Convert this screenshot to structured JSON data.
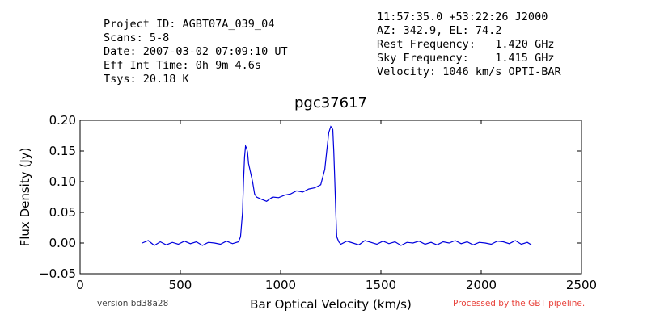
{
  "header": {
    "left": [
      "Project ID: AGBT07A_039_04",
      "Scans: 5-8",
      "Date: 2007-03-02 07:09:10 UT",
      "Eff Int Time: 0h 9m 4.6s",
      "Tsys: 20.18 K"
    ],
    "right": [
      "11:57:35.0 +53:22:26 J2000",
      "AZ: 342.9, EL: 74.2",
      "Rest Frequency:   1.420 GHz",
      "Sky Frequency:    1.415 GHz",
      "Velocity: 1046 km/s OPTI-BAR"
    ]
  },
  "footer": {
    "version": "version bd38a28",
    "processed": "Processed by the GBT pipeline."
  },
  "colors": {
    "line": "#0000dd",
    "processed_text": "#e8413a"
  },
  "chart_data": {
    "type": "line",
    "title": "pgc37617",
    "xlabel": "Bar Optical Velocity (km/s)",
    "ylabel": "Flux Density (Jy)",
    "xlim": [
      0,
      2500
    ],
    "ylim": [
      -0.05,
      0.2
    ],
    "xticks": [
      "0",
      "500",
      "1000",
      "1500",
      "2000",
      "2500"
    ],
    "yticks": [
      "−0.05",
      "0.00",
      "0.05",
      "0.10",
      "0.15",
      "0.20"
    ],
    "grid": false,
    "legend": "none",
    "series": [
      {
        "x": [
          310,
          340,
          370,
          400,
          430,
          460,
          490,
          520,
          550,
          580,
          610,
          640,
          670,
          700,
          730,
          760,
          790,
          800,
          810,
          815,
          820,
          825,
          830,
          835,
          840,
          850,
          860,
          870,
          880,
          900,
          930,
          960,
          990,
          1020,
          1050,
          1080,
          1110,
          1140,
          1170,
          1200,
          1220,
          1230,
          1240,
          1250,
          1255,
          1260,
          1265,
          1270,
          1275,
          1280,
          1290,
          1300,
          1330,
          1360,
          1390,
          1420,
          1450,
          1480,
          1510,
          1540,
          1570,
          1600,
          1630,
          1660,
          1690,
          1720,
          1750,
          1780,
          1810,
          1840,
          1870,
          1900,
          1930,
          1960,
          1990,
          2020,
          2050,
          2080,
          2110,
          2140,
          2170,
          2200,
          2230,
          2250
        ],
        "y": [
          0.0,
          0.004,
          -0.004,
          0.002,
          -0.003,
          0.001,
          -0.002,
          0.003,
          -0.001,
          0.002,
          -0.004,
          0.001,
          0.0,
          -0.002,
          0.003,
          -0.001,
          0.002,
          0.01,
          0.05,
          0.1,
          0.14,
          0.158,
          0.155,
          0.148,
          0.13,
          0.115,
          0.1,
          0.08,
          0.075,
          0.072,
          0.068,
          0.075,
          0.074,
          0.078,
          0.08,
          0.085,
          0.083,
          0.088,
          0.09,
          0.095,
          0.12,
          0.15,
          0.18,
          0.19,
          0.188,
          0.185,
          0.15,
          0.1,
          0.05,
          0.01,
          0.002,
          -0.002,
          0.003,
          0.0,
          -0.003,
          0.004,
          0.001,
          -0.002,
          0.003,
          -0.001,
          0.002,
          -0.004,
          0.001,
          0.0,
          0.003,
          -0.002,
          0.001,
          -0.003,
          0.002,
          0.0,
          0.004,
          -0.001,
          0.002,
          -0.003,
          0.001,
          0.0,
          -0.002,
          0.003,
          0.002,
          -0.001,
          0.004,
          -0.002,
          0.001,
          -0.003
        ]
      }
    ]
  }
}
